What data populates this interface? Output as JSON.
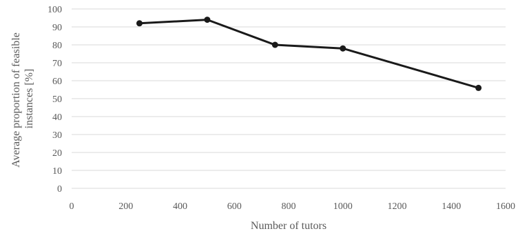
{
  "chart_data": {
    "type": "line",
    "title": "",
    "xlabel": "Number of tutors",
    "ylabel_lines": [
      "Average proportion of feasible",
      "instances [%]"
    ],
    "xlim": [
      0,
      1600
    ],
    "ylim": [
      0,
      100
    ],
    "x_ticks": [
      "0",
      "200",
      "400",
      "600",
      "800",
      "1000",
      "1200",
      "1400",
      "1600"
    ],
    "y_ticks": [
      "0",
      "10",
      "20",
      "30",
      "40",
      "50",
      "60",
      "70",
      "80",
      "90",
      "100"
    ],
    "grid": "horizontal",
    "line_color": "#1a1a1a",
    "grid_color": "#d9d9d9",
    "series": [
      {
        "x": [
          250,
          500,
          750,
          1000,
          1500
        ],
        "y": [
          92,
          94,
          80,
          78,
          56
        ]
      }
    ]
  }
}
